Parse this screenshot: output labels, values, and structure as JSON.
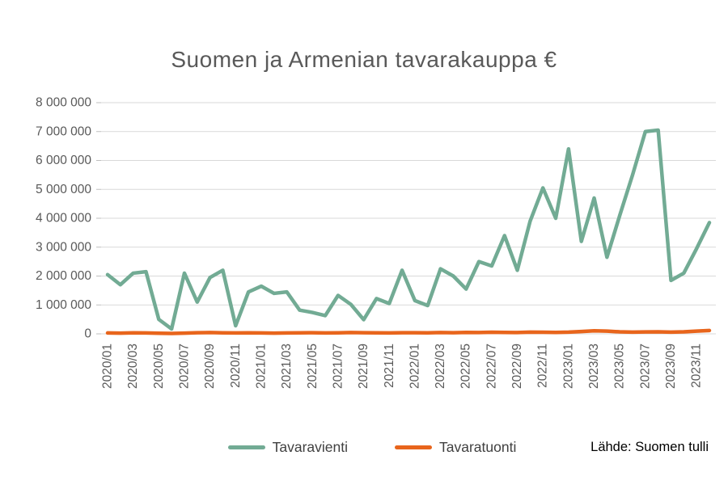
{
  "chart_data": {
    "type": "line",
    "title": "Suomen ja Armenian tavarakauppa €",
    "source_note": "Lähde: Suomen tulli",
    "grid": true,
    "legend_position": "bottom",
    "ylim": [
      0,
      8000000
    ],
    "y_ticks": [
      0,
      1000000,
      2000000,
      3000000,
      4000000,
      5000000,
      6000000,
      7000000,
      8000000
    ],
    "y_tick_labels": [
      "0",
      "1 000 000",
      "2 000 000",
      "3 000 000",
      "4 000 000",
      "5 000 000",
      "6 000 000",
      "7 000 000",
      "8 000 000"
    ],
    "x_tick_step": 2,
    "x_categories": [
      "2020/01",
      "2020/02",
      "2020/03",
      "2020/04",
      "2020/05",
      "2020/06",
      "2020/07",
      "2020/08",
      "2020/09",
      "2020/10",
      "2020/11",
      "2020/12",
      "2021/01",
      "2021/02",
      "2021/03",
      "2021/04",
      "2021/05",
      "2021/06",
      "2021/07",
      "2021/08",
      "2021/09",
      "2021/10",
      "2021/11",
      "2021/12",
      "2022/01",
      "2022/02",
      "2022/03",
      "2022/04",
      "2022/05",
      "2022/06",
      "2022/07",
      "2022/08",
      "2022/09",
      "2022/10",
      "2022/11",
      "2022/12",
      "2023/01",
      "2023/02",
      "2023/03",
      "2023/04",
      "2023/05",
      "2023/06",
      "2023/07",
      "2023/08",
      "2023/09",
      "2023/10",
      "2023/11",
      "2023/12"
    ],
    "series": [
      {
        "name": "Tavaravienti",
        "color": "#72AB94",
        "values": [
          2050000,
          1700000,
          2100000,
          2150000,
          500000,
          170000,
          2100000,
          1100000,
          1950000,
          2200000,
          280000,
          1450000,
          1650000,
          1400000,
          1450000,
          820000,
          740000,
          630000,
          1330000,
          1020000,
          490000,
          1220000,
          1050000,
          2200000,
          1150000,
          980000,
          2250000,
          2000000,
          1550000,
          2500000,
          2350000,
          3400000,
          2200000,
          3900000,
          5050000,
          4000000,
          6400000,
          3200000,
          4700000,
          2650000,
          4100000,
          5500000,
          7000000,
          7050000,
          1850000,
          2100000,
          2950000,
          3850000
        ]
      },
      {
        "name": "Tavaratuonti",
        "color": "#E8651C",
        "values": [
          30000,
          25000,
          35000,
          30000,
          20000,
          15000,
          25000,
          40000,
          45000,
          35000,
          30000,
          35000,
          30000,
          25000,
          30000,
          35000,
          40000,
          30000,
          35000,
          45000,
          40000,
          35000,
          30000,
          40000,
          40000,
          35000,
          45000,
          40000,
          50000,
          45000,
          55000,
          50000,
          45000,
          60000,
          55000,
          50000,
          60000,
          80000,
          105000,
          95000,
          70000,
          60000,
          65000,
          70000,
          60000,
          70000,
          95000,
          115000
        ]
      }
    ],
    "colors": {
      "grid": "#D9D9D9",
      "tick": "#BFBFBF",
      "axis_label": "#595959",
      "title": "#595959",
      "legend_text": "#404040"
    }
  }
}
